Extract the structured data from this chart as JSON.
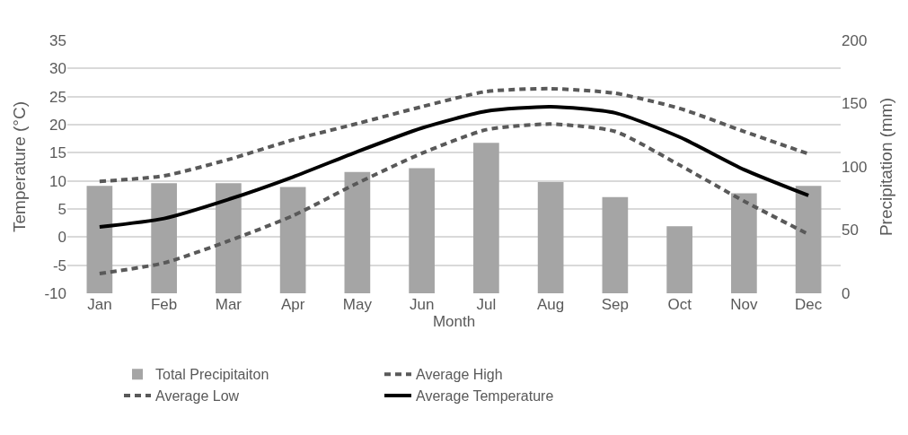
{
  "chart_data": {
    "type": "line",
    "xlabel": "Month",
    "ylabel": "Temperature (°C)",
    "y2label": "Precipitation (mm)",
    "categories": [
      "Jan",
      "Feb",
      "Mar",
      "Apr",
      "May",
      "Jun",
      "Jul",
      "Aug",
      "Sep",
      "Oct",
      "Nov",
      "Dec"
    ],
    "series": [
      {
        "name": "Total Precipitaiton",
        "type": "bar",
        "axis": "y2",
        "color": "#a5a5a5",
        "values": [
          85,
          87,
          87,
          84,
          96,
          99,
          119,
          88,
          76,
          53,
          79,
          85
        ]
      },
      {
        "name": "Average High",
        "line_style": "dashed",
        "color": "#595959",
        "values": [
          9.9,
          10.9,
          13.8,
          17.3,
          20.2,
          23.2,
          25.9,
          26.4,
          25.6,
          22.9,
          18.8,
          14.8
        ]
      },
      {
        "name": "Average Low",
        "line_style": "dashed",
        "color": "#595959",
        "values": [
          -6.5,
          -4.6,
          -0.7,
          3.8,
          9.6,
          14.9,
          19.1,
          20.1,
          18.8,
          12.8,
          6.4,
          0.5
        ]
      },
      {
        "name": "Average Temperature",
        "line_style": "solid",
        "color": "#000000",
        "values": [
          1.8,
          3.3,
          6.7,
          10.7,
          15.2,
          19.4,
          22.4,
          23.2,
          22.1,
          17.8,
          12.0,
          7.4
        ]
      }
    ],
    "ylim": [
      -10,
      35
    ],
    "yticks": [
      -10,
      -5,
      0,
      5,
      10,
      15,
      20,
      25,
      30,
      35
    ],
    "y2lim": [
      0,
      200
    ],
    "y2ticks": [
      0,
      50,
      100,
      150,
      200
    ],
    "grid": "y",
    "legend": "bottom",
    "marker": "none"
  }
}
